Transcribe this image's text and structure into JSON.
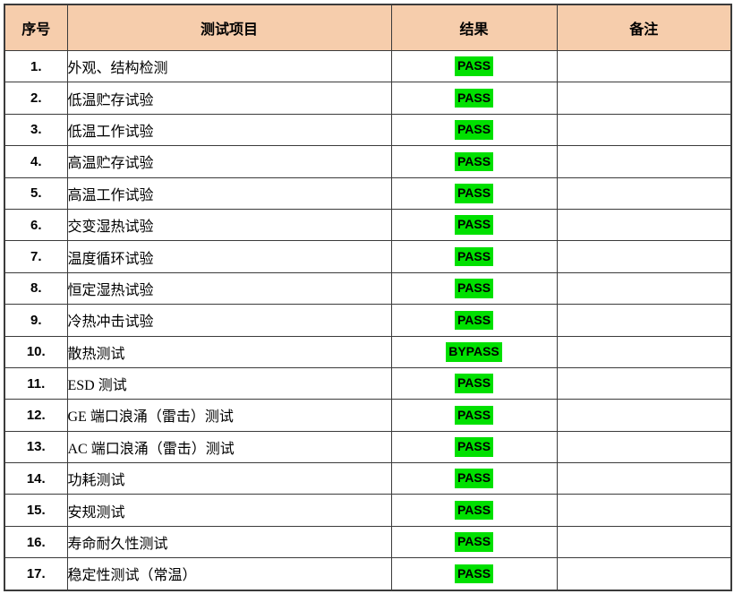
{
  "colors": {
    "header_bg": "#F6CDAC",
    "highlight_green": "#00E000",
    "border": "#3b3b3b",
    "text": "#000000"
  },
  "table": {
    "headers": [
      "序号",
      "测试项目",
      "结果",
      "备注"
    ],
    "rows": [
      {
        "no": "1.",
        "item": "外观、结构检测",
        "result": "PASS",
        "remark": ""
      },
      {
        "no": "2.",
        "item": "低温贮存试验",
        "result": "PASS",
        "remark": ""
      },
      {
        "no": "3.",
        "item": "低温工作试验",
        "result": "PASS",
        "remark": ""
      },
      {
        "no": "4.",
        "item": "高温贮存试验",
        "result": "PASS",
        "remark": ""
      },
      {
        "no": "5.",
        "item": "高温工作试验",
        "result": "PASS",
        "remark": ""
      },
      {
        "no": "6.",
        "item": "交变湿热试验",
        "result": "PASS",
        "remark": ""
      },
      {
        "no": "7.",
        "item": "温度循环试验",
        "result": "PASS",
        "remark": ""
      },
      {
        "no": "8.",
        "item": "恒定湿热试验",
        "result": "PASS",
        "remark": ""
      },
      {
        "no": "9.",
        "item": "冷热冲击试验",
        "result": "PASS",
        "remark": ""
      },
      {
        "no": "10.",
        "item": "散热测试",
        "result": "BYPASS",
        "remark": ""
      },
      {
        "no": "11.",
        "item": "ESD 测试",
        "result": "PASS",
        "remark": ""
      },
      {
        "no": "12.",
        "item": "GE 端口浪涌（雷击）测试",
        "result": "PASS",
        "remark": ""
      },
      {
        "no": "13.",
        "item": "AC 端口浪涌（雷击）测试",
        "result": "PASS",
        "remark": ""
      },
      {
        "no": "14.",
        "item": "功耗测试",
        "result": "PASS",
        "remark": ""
      },
      {
        "no": "15.",
        "item": "安规测试",
        "result": "PASS",
        "remark": ""
      },
      {
        "no": "16.",
        "item": "寿命耐久性测试",
        "result": "PASS",
        "remark": ""
      },
      {
        "no": "17.",
        "item": "稳定性测试（常温）",
        "result": "PASS",
        "remark": ""
      }
    ]
  }
}
